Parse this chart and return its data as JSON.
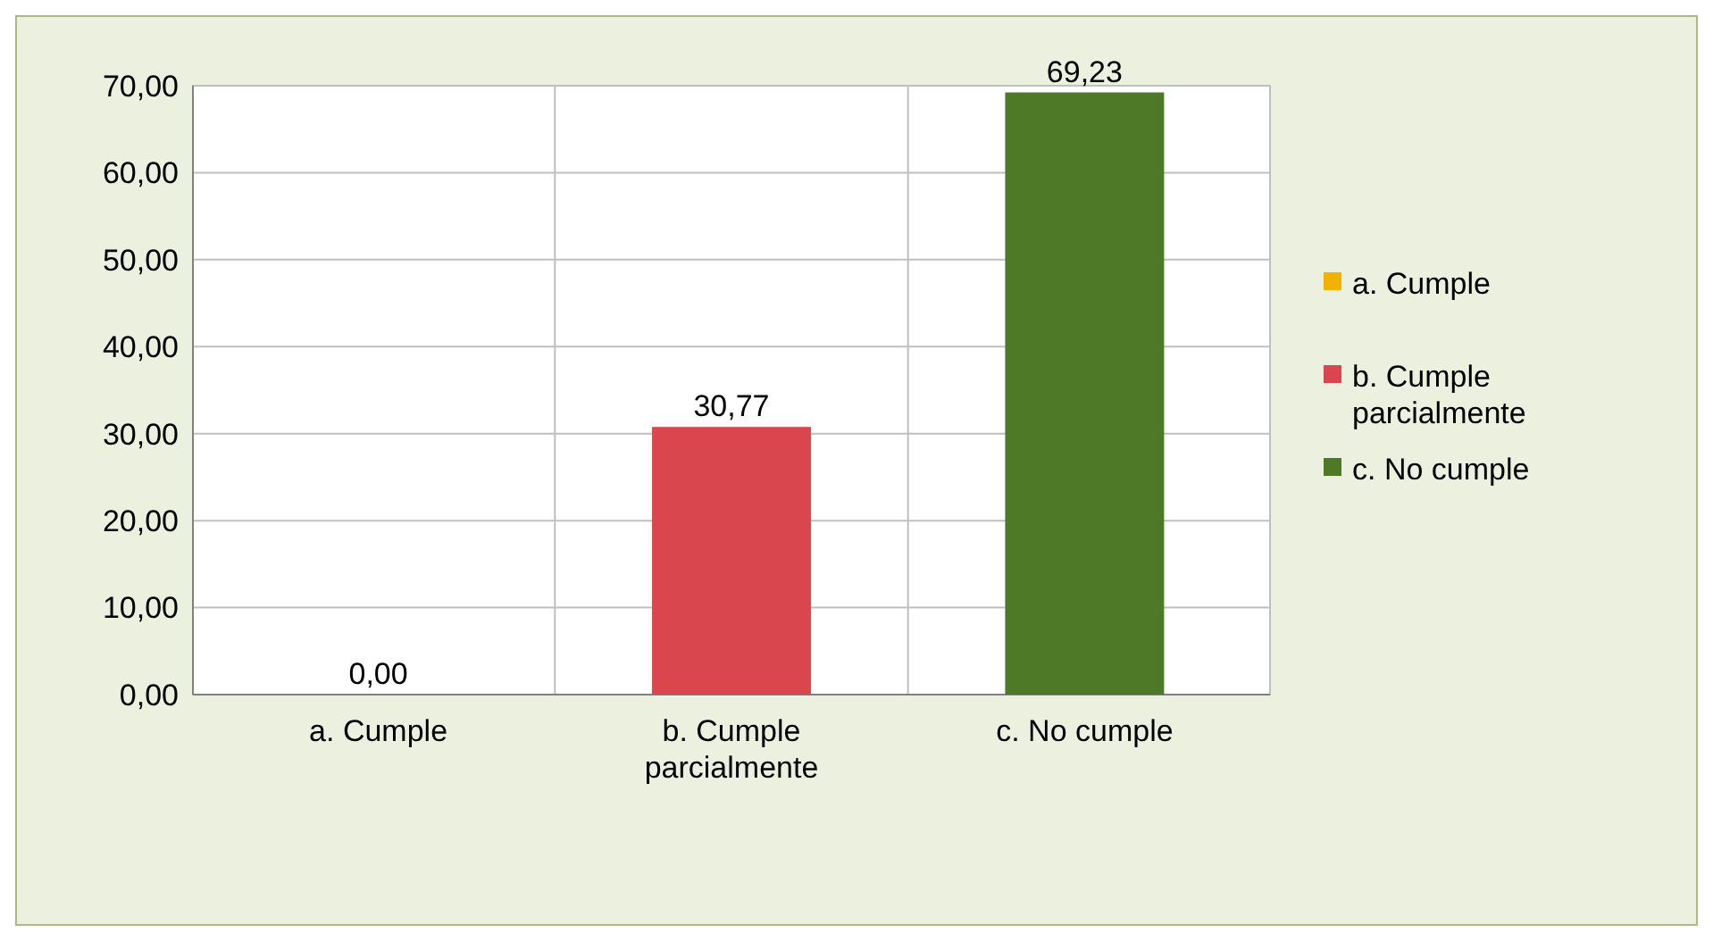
{
  "chart_data": {
    "type": "bar",
    "categories": [
      "a. Cumple",
      "b. Cumple parcialmente",
      "c. No cumple"
    ],
    "series": [
      {
        "name": "a. Cumple",
        "color": "#f2b200",
        "values": [
          0,
          null,
          null
        ],
        "value_labels": [
          "0,00",
          null,
          null
        ]
      },
      {
        "name": "b. Cumple parcialmente",
        "color": "#d9464e",
        "values": [
          null,
          30.77,
          null
        ],
        "value_labels": [
          null,
          "30,77",
          null
        ]
      },
      {
        "name": "c. No cumple",
        "color": "#4e7a27",
        "values": [
          null,
          null,
          69.23
        ],
        "value_labels": [
          null,
          null,
          "69,23"
        ]
      }
    ],
    "ylim": [
      0,
      70
    ],
    "yticks": [
      {
        "value": 0,
        "label": "0,00"
      },
      {
        "value": 10,
        "label": "10,00"
      },
      {
        "value": 20,
        "label": "20,00"
      },
      {
        "value": 30,
        "label": "30,00"
      },
      {
        "value": 40,
        "label": "40,00"
      },
      {
        "value": 50,
        "label": "50,00"
      },
      {
        "value": 60,
        "label": "60,00"
      },
      {
        "value": 70,
        "label": "70,00"
      }
    ],
    "grid": true,
    "legend": "right"
  }
}
